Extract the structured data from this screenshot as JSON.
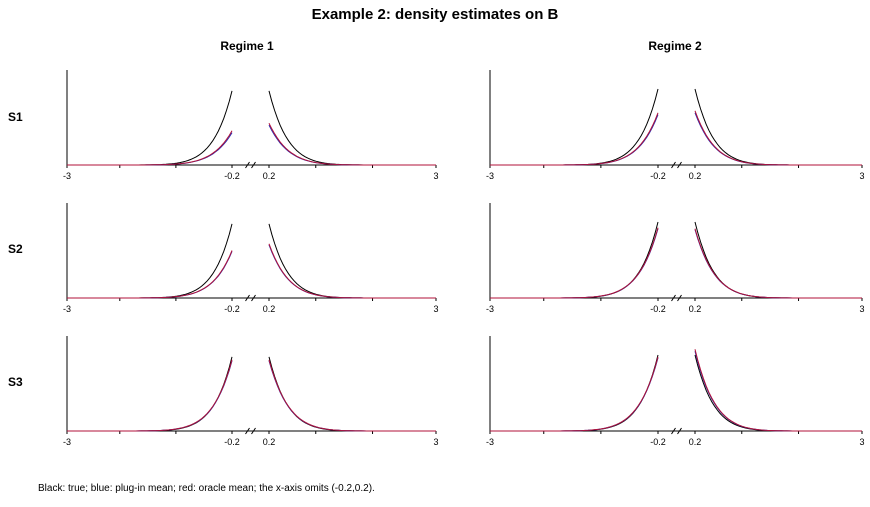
{
  "title": "Example 2: density estimates on B",
  "columns": [
    "Regime 1",
    "Regime 2"
  ],
  "rows": [
    "S1",
    "S2",
    "S3"
  ],
  "caption": "Black: true; blue: plug-in mean; red: oracle mean; the x-axis omits (-0.2,0.2).",
  "colors": {
    "true": "#000000",
    "plugin": "#2b2bb0",
    "oracle": "#b0123a"
  },
  "chart_data": {
    "type": "line",
    "x_ticks": [
      "-3",
      "-0.2",
      "0.2",
      "3"
    ],
    "xlim": [
      -3,
      3
    ],
    "x_gap": [
      -0.2,
      0.2
    ],
    "axis_break": true,
    "series": [
      {
        "name": "Black: true",
        "key": "true"
      },
      {
        "name": "blue: plug-in mean",
        "key": "plugin"
      },
      {
        "name": "red: oracle mean",
        "key": "oracle"
      }
    ],
    "panels": [
      {
        "row": "S1",
        "column": "Regime 1",
        "true_peak": 0.78,
        "plugin_left_peak": 0.34,
        "plugin_right_peak": 0.42,
        "oracle_left_peak": 0.36,
        "oracle_right_peak": 0.44
      },
      {
        "row": "S1",
        "column": "Regime 2",
        "true_peak": 0.8,
        "plugin_left_peak": 0.53,
        "plugin_right_peak": 0.55,
        "oracle_left_peak": 0.55,
        "oracle_right_peak": 0.57
      },
      {
        "row": "S2",
        "column": "Regime 1",
        "true_peak": 0.78,
        "plugin_left_peak": 0.49,
        "plugin_right_peak": 0.56,
        "oracle_left_peak": 0.5,
        "oracle_right_peak": 0.57
      },
      {
        "row": "S2",
        "column": "Regime 2",
        "true_peak": 0.8,
        "plugin_left_peak": 0.73,
        "plugin_right_peak": 0.72,
        "oracle_left_peak": 0.74,
        "oracle_right_peak": 0.73
      },
      {
        "row": "S3",
        "column": "Regime 1",
        "true_peak": 0.78,
        "plugin_left_peak": 0.74,
        "plugin_right_peak": 0.74,
        "oracle_left_peak": 0.75,
        "oracle_right_peak": 0.75
      },
      {
        "row": "S3",
        "column": "Regime 2",
        "true_peak": 0.8,
        "plugin_left_peak": 0.77,
        "plugin_right_peak": 0.84,
        "oracle_left_peak": 0.78,
        "oracle_right_peak": 0.86
      }
    ]
  }
}
